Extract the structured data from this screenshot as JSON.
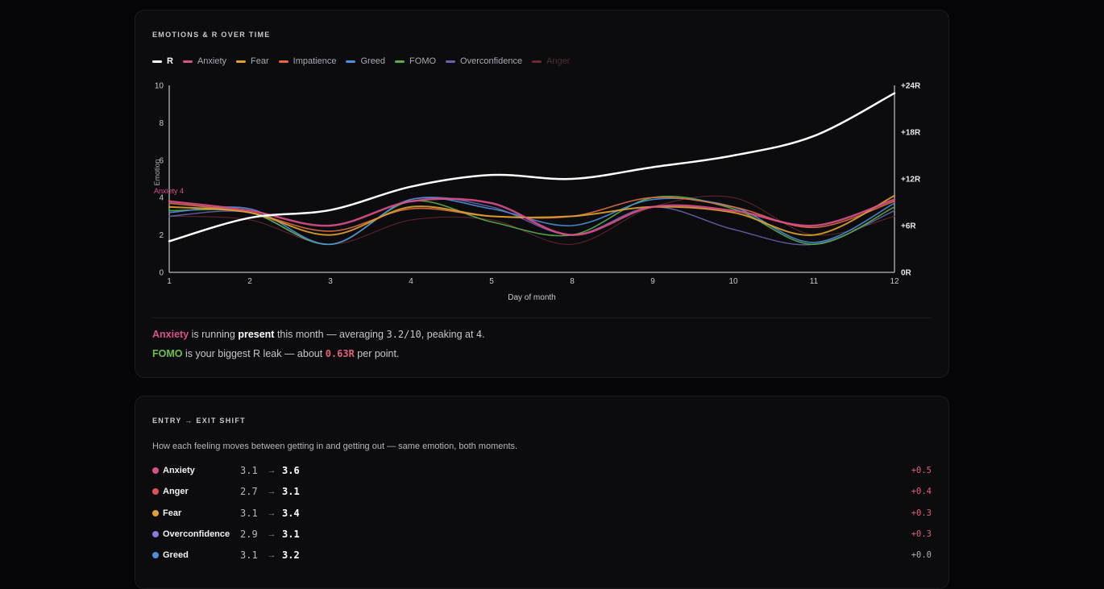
{
  "chart_card": {
    "title": "EMOTIONS & R OVER TIME",
    "insight1": {
      "emotion": "Anxiety",
      "t1": " is running ",
      "level": "present",
      "t2": " this month — averaging ",
      "avg": "3.2/10",
      "t3": ", peaking at ",
      "peak": "4",
      "t4": "."
    },
    "insight2": {
      "emotion": "FOMO",
      "t1": " is your biggest R leak — about ",
      "value": "0.63R",
      "t2": " per point."
    }
  },
  "shift_card": {
    "title": "ENTRY → EXIT SHIFT",
    "subtitle": "How each feeling moves between getting in and getting out — same emotion, both moments.",
    "arrow": "→",
    "rows": [
      {
        "name": "Anxiety",
        "entry": "3.1",
        "exit": "3.6",
        "delta": "+0.5",
        "color": "#d9508a",
        "delta_color": "#e0607a"
      },
      {
        "name": "Anger",
        "entry": "2.7",
        "exit": "3.1",
        "delta": "+0.4",
        "color": "#e0505a",
        "delta_color": "#e0607a"
      },
      {
        "name": "Fear",
        "entry": "3.1",
        "exit": "3.4",
        "delta": "+0.3",
        "color": "#e0a030",
        "delta_color": "#e0607a"
      },
      {
        "name": "Overconfidence",
        "entry": "2.9",
        "exit": "3.1",
        "delta": "+0.3",
        "color": "#8a7ae0",
        "delta_color": "#e0607a"
      },
      {
        "name": "Greed",
        "entry": "3.1",
        "exit": "3.2",
        "delta": "+0.0",
        "color": "#4a90d9",
        "delta_color": "#b0b0b8"
      }
    ]
  },
  "chart_data": {
    "type": "line",
    "title": "EMOTIONS & R OVER TIME",
    "xlabel": "Day of month",
    "ylabel": "Emotion",
    "x": [
      "1",
      "2",
      "3",
      "4",
      "5",
      "8",
      "9",
      "10",
      "11",
      "12"
    ],
    "ylim": [
      0,
      10
    ],
    "yticks": [
      0,
      2,
      4,
      6,
      8,
      10
    ],
    "y2lim": [
      0,
      24
    ],
    "y2ticks": [
      "0R",
      "+6R",
      "+12R",
      "+18R",
      "+24R"
    ],
    "legend_position": "top-left",
    "annotation": {
      "text": "Anxiety 4",
      "series": "Anxiety",
      "x": "1",
      "y": 4,
      "color": "#d9508a"
    },
    "series": [
      {
        "name": "R",
        "axis": "right",
        "color": "#ffffff",
        "width": 2.5,
        "values": [
          4,
          7,
          8,
          11,
          12.5,
          12,
          13.5,
          15,
          17.5,
          23
        ]
      },
      {
        "name": "Anxiety",
        "color": "#d9508a",
        "width": 2.5,
        "values": [
          3.8,
          3.3,
          2.5,
          3.8,
          3.7,
          2.0,
          3.5,
          3.3,
          2.5,
          3.9
        ]
      },
      {
        "name": "Fear",
        "color": "#e0a030",
        "width": 2,
        "values": [
          3.5,
          3.2,
          2.0,
          3.5,
          3.0,
          3.0,
          3.5,
          3.2,
          2.0,
          4.1
        ]
      },
      {
        "name": "Impatience",
        "color": "#e07040",
        "width": 1.6,
        "values": [
          3.7,
          3.2,
          2.2,
          3.4,
          3.0,
          3.0,
          4.0,
          3.5,
          2.4,
          3.8
        ]
      },
      {
        "name": "Greed",
        "color": "#4a90d9",
        "width": 1.6,
        "values": [
          3.2,
          3.4,
          1.5,
          3.9,
          3.4,
          2.5,
          3.9,
          3.5,
          1.6,
          3.7
        ]
      },
      {
        "name": "FOMO",
        "color": "#5ab04a",
        "width": 1.6,
        "values": [
          3.3,
          3.2,
          1.5,
          3.8,
          2.7,
          2.0,
          4.0,
          3.4,
          1.5,
          3.5
        ]
      },
      {
        "name": "Overconfidence",
        "color": "#6a64b0",
        "width": 1.4,
        "values": [
          3.0,
          3.2,
          1.5,
          3.9,
          3.5,
          2.0,
          3.5,
          2.3,
          1.5,
          3.3
        ]
      },
      {
        "name": "Anger",
        "color": "#6a2a34",
        "width": 1,
        "faded": true,
        "values": [
          3.0,
          2.8,
          1.5,
          2.8,
          2.8,
          1.5,
          3.5,
          4.0,
          2.0,
          3.0
        ]
      }
    ]
  }
}
